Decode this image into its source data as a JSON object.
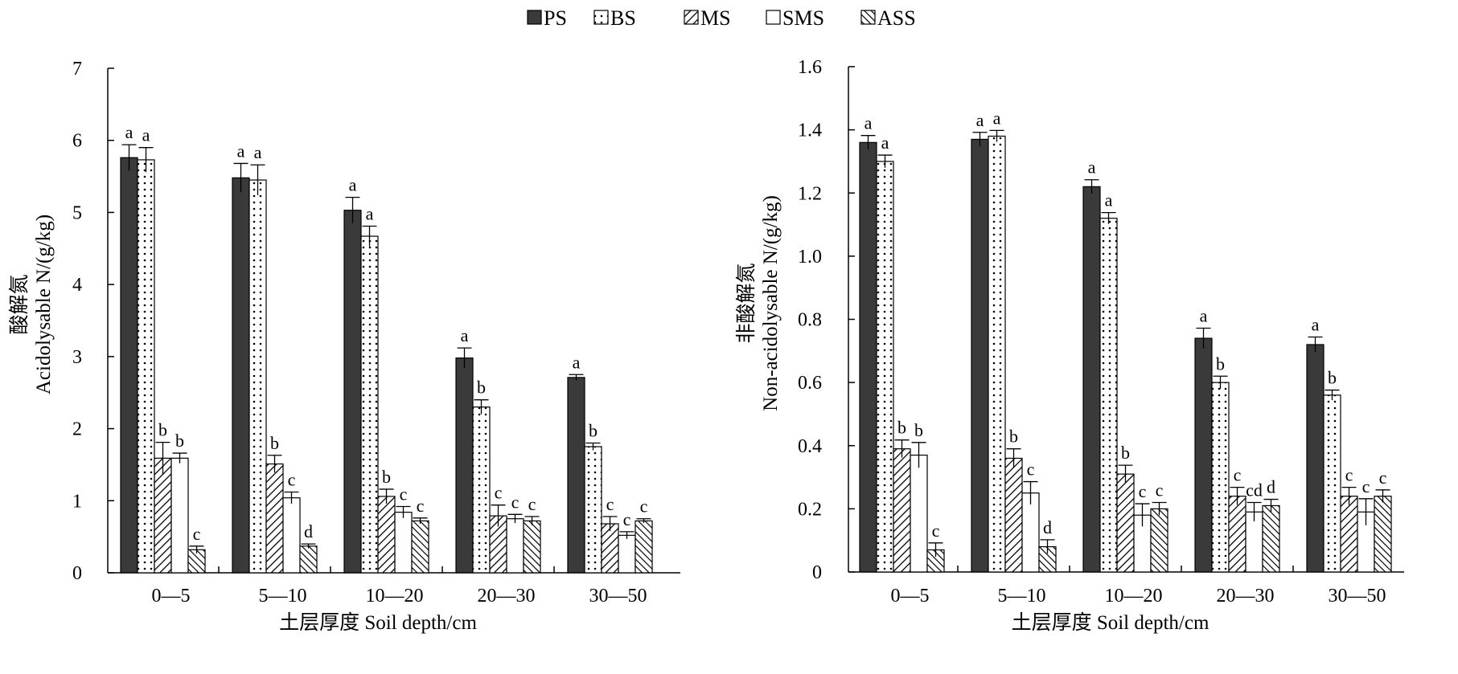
{
  "legend": [
    {
      "key": "PS",
      "pattern": "solid"
    },
    {
      "key": "BS",
      "pattern": "dots"
    },
    {
      "key": "MS",
      "pattern": "diag-right"
    },
    {
      "key": "SMS",
      "pattern": "open"
    },
    {
      "key": "ASS",
      "pattern": "diag-left"
    }
  ],
  "colors": {
    "solid": "#3a3a3a",
    "stroke": "#000000",
    "background": "#ffffff"
  },
  "chart_data": [
    {
      "type": "bar",
      "ylabel_cn": "酸解氮",
      "ylabel_en": "Acidolysable N/(g/kg)",
      "xlabel": "土层厚度  Soil depth/cm",
      "categories": [
        "0—5",
        "5—10",
        "10—20",
        "20—30",
        "30—50"
      ],
      "ylim": [
        0,
        7
      ],
      "yticks": [
        "0",
        "1",
        "2",
        "3",
        "4",
        "5",
        "6",
        "7"
      ],
      "grid": false,
      "legend_position": "top-center",
      "series": [
        {
          "name": "PS",
          "values": [
            5.76,
            5.48,
            5.03,
            2.98,
            2.71
          ],
          "errors": [
            0.18,
            0.2,
            0.18,
            0.14,
            0.04
          ],
          "letters": [
            "a",
            "a",
            "a",
            "a",
            "a"
          ]
        },
        {
          "name": "BS",
          "values": [
            5.73,
            5.45,
            4.67,
            2.3,
            1.75
          ],
          "errors": [
            0.17,
            0.21,
            0.14,
            0.1,
            0.05
          ],
          "letters": [
            "a",
            "a",
            "a",
            "b",
            "b"
          ]
        },
        {
          "name": "MS",
          "values": [
            1.59,
            1.51,
            1.06,
            0.79,
            0.68
          ],
          "errors": [
            0.22,
            0.12,
            0.1,
            0.15,
            0.1
          ],
          "letters": [
            "b",
            "b",
            "b",
            "c",
            "c"
          ]
        },
        {
          "name": "SMS",
          "values": [
            1.59,
            1.04,
            0.84,
            0.75,
            0.52
          ],
          "errors": [
            0.07,
            0.08,
            0.08,
            0.06,
            0.05
          ],
          "letters": [
            "b",
            "c",
            "c",
            "c",
            "c"
          ]
        },
        {
          "name": "ASS",
          "values": [
            0.32,
            0.37,
            0.72,
            0.72,
            0.72
          ],
          "errors": [
            0.05,
            0.03,
            0.04,
            0.06,
            0.03
          ],
          "letters": [
            "c",
            "d",
            "c",
            "c",
            "c"
          ]
        }
      ]
    },
    {
      "type": "bar",
      "ylabel_cn": "非酸解氮",
      "ylabel_en": "Non-acidolysable N/(g/kg)",
      "xlabel": "土层厚度  Soil depth/cm",
      "categories": [
        "0—5",
        "5—10",
        "10—20",
        "20—30",
        "30—50"
      ],
      "ylim": [
        0,
        1.6
      ],
      "yticks": [
        "0",
        "0.2",
        "0.4",
        "0.6",
        "0.8",
        "1.0",
        "1.2",
        "1.4",
        "1.6"
      ],
      "grid": false,
      "legend_position": "top-center",
      "series": [
        {
          "name": "PS",
          "values": [
            1.36,
            1.37,
            1.22,
            0.74,
            0.72
          ],
          "errors": [
            0.022,
            0.022,
            0.022,
            0.032,
            0.024
          ],
          "letters": [
            "a",
            "a",
            "a",
            "a",
            "a"
          ]
        },
        {
          "name": "BS",
          "values": [
            1.3,
            1.38,
            1.12,
            0.6,
            0.56
          ],
          "errors": [
            0.02,
            0.018,
            0.018,
            0.02,
            0.016
          ],
          "letters": [
            "a",
            "a",
            "a",
            "b",
            "b"
          ]
        },
        {
          "name": "MS",
          "values": [
            0.39,
            0.36,
            0.31,
            0.24,
            0.24
          ],
          "errors": [
            0.028,
            0.03,
            0.028,
            0.028,
            0.028
          ],
          "letters": [
            "b",
            "b",
            "b",
            "c",
            "c"
          ]
        },
        {
          "name": "SMS",
          "values": [
            0.37,
            0.25,
            0.18,
            0.19,
            0.19
          ],
          "errors": [
            0.04,
            0.036,
            0.036,
            0.03,
            0.042
          ],
          "letters": [
            "b",
            "c",
            "c",
            "cd",
            "c"
          ]
        },
        {
          "name": "ASS",
          "values": [
            0.07,
            0.08,
            0.2,
            0.21,
            0.24
          ],
          "errors": [
            0.022,
            0.022,
            0.02,
            0.02,
            0.02
          ],
          "letters": [
            "c",
            "d",
            "c",
            "d",
            "c"
          ]
        }
      ]
    }
  ]
}
